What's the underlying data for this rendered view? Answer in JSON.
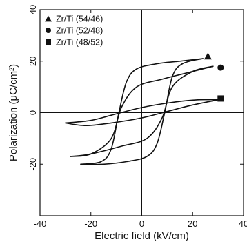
{
  "chart_data": {
    "type": "line",
    "xlabel": "Electric field (kV/cm)",
    "ylabel": "Polarization (μC/cm²)",
    "xlim": [
      -40,
      40
    ],
    "ylim": [
      -40,
      40
    ],
    "x_ticks": [
      -40,
      -20,
      0,
      20,
      40
    ],
    "y_ticks": [
      -20,
      0,
      20,
      40
    ],
    "grid": false,
    "legend_position": "top-left",
    "series": [
      {
        "name": "Zr/Ti (54/46)",
        "marker": "triangle",
        "marker_point": [
          26,
          22
        ],
        "upper": [
          [
            -24,
            -20
          ],
          [
            -16,
            -19
          ],
          [
            -12,
            -14
          ],
          [
            -9,
            0
          ],
          [
            -6,
            12
          ],
          [
            -2,
            17
          ],
          [
            6,
            19
          ],
          [
            15,
            20
          ],
          [
            24,
            21
          ]
        ],
        "lower": [
          [
            24,
            21
          ],
          [
            16,
            19
          ],
          [
            12,
            14
          ],
          [
            9,
            0
          ],
          [
            6,
            -12
          ],
          [
            2,
            -17
          ],
          [
            -6,
            -19
          ],
          [
            -15,
            -20
          ],
          [
            -24,
            -20
          ]
        ]
      },
      {
        "name": "Zr/Ti (52/48)",
        "marker": "circle",
        "marker_point": [
          31,
          17.5
        ],
        "upper": [
          [
            -28,
            -17
          ],
          [
            -20,
            -16
          ],
          [
            -12,
            -10
          ],
          [
            -8,
            2
          ],
          [
            -2,
            10
          ],
          [
            8,
            13
          ],
          [
            20,
            16
          ],
          [
            28,
            18
          ]
        ],
        "lower": [
          [
            28,
            18
          ],
          [
            20,
            16
          ],
          [
            12,
            10
          ],
          [
            8,
            -2
          ],
          [
            2,
            -10
          ],
          [
            -8,
            -13
          ],
          [
            -20,
            -16
          ],
          [
            -28,
            -17
          ]
        ]
      },
      {
        "name": "Zr/Ti (48/52)",
        "marker": "square",
        "marker_point": [
          31,
          5.5
        ],
        "upper": [
          [
            -30,
            -4
          ],
          [
            -20,
            -3
          ],
          [
            -12,
            -1
          ],
          [
            0,
            2
          ],
          [
            12,
            4
          ],
          [
            22,
            5
          ],
          [
            30,
            5
          ]
        ],
        "lower": [
          [
            30,
            5
          ],
          [
            20,
            3
          ],
          [
            12,
            1
          ],
          [
            0,
            -2
          ],
          [
            -12,
            -4
          ],
          [
            -22,
            -5
          ],
          [
            -30,
            -4
          ]
        ]
      }
    ]
  }
}
